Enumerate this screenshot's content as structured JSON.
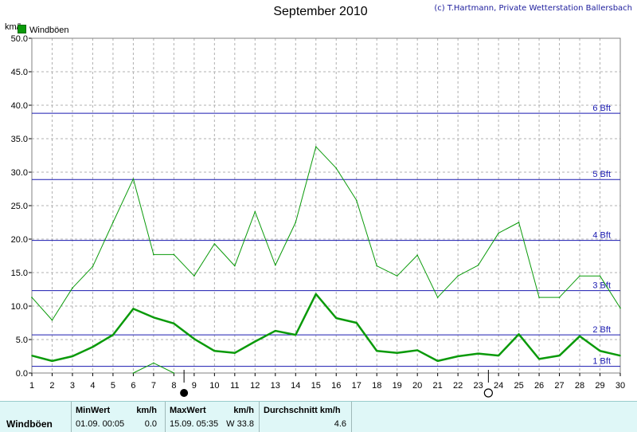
{
  "title": "September 2010",
  "credit": "(c) T.Hartmann, Private Wetterstation Ballersbach",
  "unit_label": "km/h",
  "colors": {
    "series": "#0a9a0a",
    "beaufort": "#1a1ab0",
    "grid": "#b0b0b0",
    "footer_bg": "#dff7f7"
  },
  "chart_data": {
    "type": "line",
    "title": "September 2010",
    "ylabel": "km/h",
    "xlabel": "",
    "x": [
      1,
      2,
      3,
      4,
      5,
      6,
      7,
      8,
      9,
      10,
      11,
      12,
      13,
      14,
      15,
      16,
      17,
      18,
      19,
      20,
      21,
      22,
      23,
      24,
      25,
      26,
      27,
      28,
      29,
      30
    ],
    "ylim": [
      0,
      50
    ],
    "xlim": [
      1,
      30
    ],
    "yticks": [
      "0.0",
      "5.0",
      "10.0",
      "15.0",
      "20.0",
      "25.0",
      "30.0",
      "35.0",
      "40.0",
      "45.0",
      "50.0"
    ],
    "xticks": [
      "1",
      "2",
      "3",
      "4",
      "5",
      "6",
      "7",
      "8",
      "9",
      "10",
      "11",
      "12",
      "13",
      "14",
      "15",
      "16",
      "17",
      "18",
      "19",
      "20",
      "21",
      "22",
      "23",
      "24",
      "25",
      "26",
      "27",
      "28",
      "29",
      "30"
    ],
    "grid": true,
    "legend": "top-left",
    "series": [
      {
        "name": "Windböen",
        "role": "average",
        "values": [
          2.6,
          1.8,
          2.5,
          3.9,
          5.7,
          9.6,
          8.3,
          7.4,
          5.1,
          3.3,
          3.0,
          4.7,
          6.3,
          5.7,
          11.8,
          8.2,
          7.5,
          3.3,
          3.0,
          3.4,
          1.8,
          2.5,
          2.9,
          2.6,
          5.8,
          2.1,
          2.6,
          5.5,
          3.3,
          2.6
        ]
      },
      {
        "role": "maximum",
        "values": [
          11.3,
          7.9,
          12.7,
          15.9,
          22.5,
          29.0,
          17.7,
          17.7,
          14.5,
          19.3,
          16.0,
          24.1,
          16.1,
          22.5,
          33.8,
          30.6,
          25.8,
          16.0,
          14.5,
          17.6,
          11.3,
          14.5,
          16.1,
          20.9,
          22.5,
          11.3,
          11.3,
          14.5,
          14.5,
          9.7
        ]
      },
      {
        "role": "minimum",
        "x": [
          6,
          7,
          8
        ],
        "values": [
          0.0,
          1.5,
          0.0
        ]
      }
    ],
    "reference_lines": [
      {
        "label": "1 Bft",
        "value": 1.0
      },
      {
        "label": "2 Bft",
        "value": 5.7
      },
      {
        "label": "3 Bft",
        "value": 12.3
      },
      {
        "label": "4 Bft",
        "value": 19.8
      },
      {
        "label": "5 Bft",
        "value": 28.9
      },
      {
        "label": "6 Bft",
        "value": 38.8
      }
    ],
    "moon_phases": [
      {
        "day": 8,
        "symbol": "full"
      },
      {
        "day": 23,
        "symbol": "new"
      }
    ]
  },
  "footer": {
    "row_label": "Windböen",
    "min_header": "MinWert",
    "min_unit": "km/h",
    "min_time": "01.09.  00:05",
    "min_value": "0.0",
    "max_header": "MaxWert",
    "max_unit": "km/h",
    "max_time": "15.09.  05:35",
    "max_value": "W 33.8",
    "avg_header": "Durchschnitt km/h",
    "avg_value": "4.6"
  }
}
